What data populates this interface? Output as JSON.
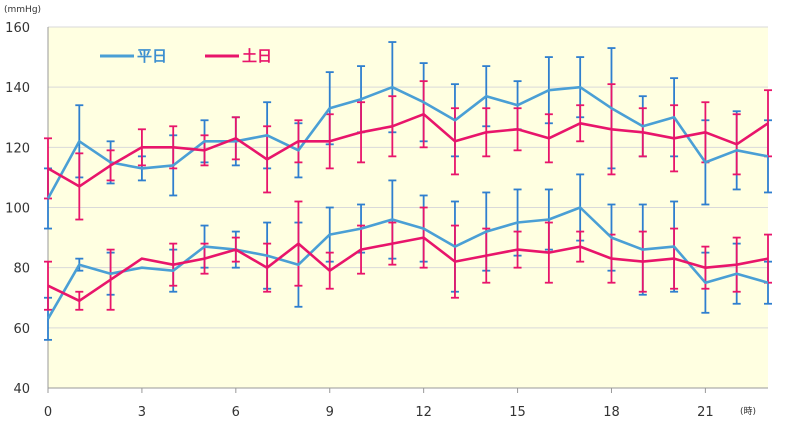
{
  "colors": {
    "weekday": "#4a9fd5",
    "weekday_err": "#2f7fcf",
    "weekend": "#e8156b",
    "weekend_err": "#e8156b",
    "plot_bg": "#ffffe1"
  },
  "chart_data": {
    "type": "line",
    "ylabel": "(mmHg)",
    "xlabel": "(時)",
    "ylim": [
      40,
      160
    ],
    "xlim": [
      0,
      23
    ],
    "yticks": [
      40,
      60,
      80,
      100,
      120,
      140,
      160
    ],
    "xticks": [
      0,
      3,
      6,
      9,
      12,
      15,
      18,
      21
    ],
    "grid": "horizontal",
    "legend_placement": "top-left",
    "x": [
      0,
      1,
      2,
      3,
      4,
      5,
      6,
      7,
      8,
      9,
      10,
      11,
      12,
      13,
      14,
      15,
      16,
      17,
      18,
      19,
      20,
      21,
      22,
      23
    ],
    "series": [
      {
        "name": "平日",
        "group": "weekday",
        "values": [
          103,
          122,
          115,
          113,
          114,
          122,
          122,
          124,
          119,
          133,
          136,
          140,
          135,
          129,
          137,
          134,
          139,
          140,
          133,
          127,
          130,
          115,
          119,
          117
        ],
        "error": [
          10,
          12,
          7,
          4,
          10,
          7,
          8,
          11,
          9,
          12,
          11,
          15,
          13,
          12,
          10,
          8,
          11,
          10,
          20,
          10,
          13,
          14,
          13,
          12
        ]
      },
      {
        "name": "土日",
        "group": "weekend",
        "values": [
          113,
          107,
          114,
          120,
          120,
          119,
          123,
          116,
          122,
          122,
          125,
          127,
          131,
          122,
          125,
          126,
          123,
          128,
          126,
          125,
          123,
          125,
          121,
          128
        ],
        "error": [
          10,
          11,
          5,
          6,
          7,
          5,
          7,
          11,
          7,
          9,
          10,
          10,
          11,
          11,
          8,
          7,
          8,
          6,
          15,
          8,
          11,
          10,
          10,
          11
        ]
      },
      {
        "group": "weekday",
        "values": [
          63,
          81,
          78,
          80,
          79,
          87,
          86,
          84,
          81,
          91,
          93,
          96,
          93,
          87,
          92,
          95,
          96,
          100,
          90,
          86,
          87,
          75,
          78,
          75
        ],
        "error": [
          7,
          2,
          7,
          0,
          7,
          7,
          6,
          11,
          14,
          9,
          8,
          13,
          11,
          15,
          13,
          11,
          10,
          11,
          11,
          15,
          15,
          10,
          10,
          7
        ]
      },
      {
        "group": "weekend",
        "values": [
          74,
          69,
          76,
          83,
          81,
          83,
          86,
          80,
          88,
          79,
          86,
          88,
          90,
          82,
          84,
          86,
          85,
          87,
          83,
          82,
          83,
          80,
          81,
          83
        ],
        "error": [
          8,
          3,
          10,
          0,
          7,
          5,
          4,
          8,
          14,
          6,
          8,
          7,
          10,
          12,
          9,
          6,
          10,
          5,
          8,
          10,
          10,
          7,
          9,
          8
        ]
      }
    ]
  }
}
